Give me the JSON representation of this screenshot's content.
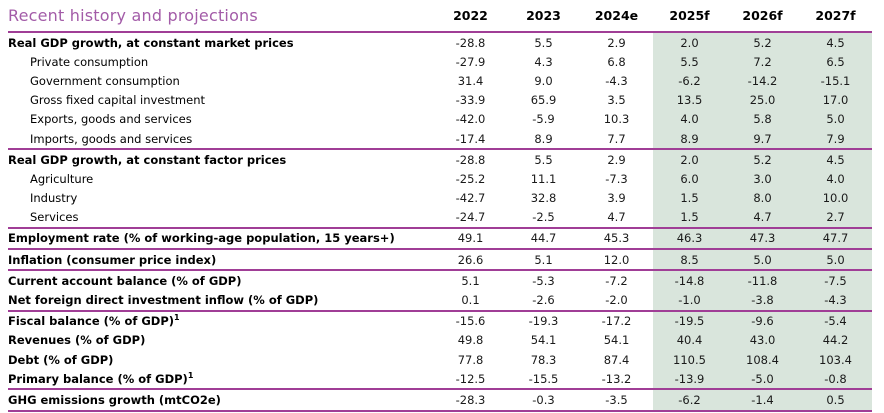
{
  "title": "Recent history and projections",
  "columns": [
    "2022",
    "2023",
    "2024e",
    "2025f",
    "2026f",
    "2027f"
  ],
  "forecast_columns": [
    "2025f",
    "2026f",
    "2027f"
  ],
  "colors": {
    "line_purple": "#A03E96",
    "title_purple": "#A35CA8",
    "forecast_bg_green": "#D9E5DC",
    "text": "#000000"
  },
  "rows": [
    {
      "label": "Real GDP growth, at constant market prices",
      "style": "bold",
      "values": [
        "-28.8",
        "5.5",
        "2.9",
        "2.0",
        "5.2",
        "4.5"
      ]
    },
    {
      "label": "Private consumption",
      "style": "sub",
      "values": [
        "-27.9",
        "4.3",
        "6.8",
        "5.5",
        "7.2",
        "6.5"
      ]
    },
    {
      "label": "Government consumption",
      "style": "sub",
      "values": [
        "31.4",
        "9.0",
        "-4.3",
        "-6.2",
        "-14.2",
        "-15.1"
      ]
    },
    {
      "label": "Gross fixed capital investment",
      "style": "sub",
      "values": [
        "-33.9",
        "65.9",
        "3.5",
        "13.5",
        "25.0",
        "17.0"
      ]
    },
    {
      "label": "Exports, goods and services",
      "style": "sub",
      "values": [
        "-42.0",
        "-5.9",
        "10.3",
        "4.0",
        "5.8",
        "5.0"
      ]
    },
    {
      "label": "Imports, goods and services",
      "style": "sub",
      "values": [
        "-17.4",
        "8.9",
        "7.7",
        "8.9",
        "9.7",
        "7.9"
      ],
      "divider_after": true
    },
    {
      "label": "Real GDP growth, at constant factor prices",
      "style": "bold",
      "values": [
        "-28.8",
        "5.5",
        "2.9",
        "2.0",
        "5.2",
        "4.5"
      ]
    },
    {
      "label": "Agriculture",
      "style": "sub",
      "values": [
        "-25.2",
        "11.1",
        "-7.3",
        "6.0",
        "3.0",
        "4.0"
      ]
    },
    {
      "label": "Industry",
      "style": "sub",
      "values": [
        "-42.7",
        "32.8",
        "3.9",
        "1.5",
        "8.0",
        "10.0"
      ]
    },
    {
      "label": "Services",
      "style": "sub",
      "values": [
        "-24.7",
        "-2.5",
        "4.7",
        "1.5",
        "4.7",
        "2.7"
      ],
      "divider_after": true
    },
    {
      "label": "Employment rate (% of working-age population, 15 years+)",
      "style": "bold",
      "values": [
        "49.1",
        "44.7",
        "45.3",
        "46.3",
        "47.3",
        "47.7"
      ],
      "divider_after": true
    },
    {
      "label": "Inflation (consumer price index)",
      "style": "bold",
      "values": [
        "26.6",
        "5.1",
        "12.0",
        "8.5",
        "5.0",
        "5.0"
      ],
      "divider_after": true
    },
    {
      "label": "Current account balance (% of GDP)",
      "style": "bold",
      "values": [
        "5.1",
        "-5.3",
        "-7.2",
        "-14.8",
        "-11.8",
        "-7.5"
      ]
    },
    {
      "label": "Net foreign direct investment inflow (% of GDP)",
      "style": "bold",
      "values": [
        "0.1",
        "-2.6",
        "-2.0",
        "-1.0",
        "-3.8",
        "-4.3"
      ],
      "divider_after": true
    },
    {
      "label": "Fiscal balance (% of GDP)",
      "sup": "1",
      "style": "bold",
      "values": [
        "-15.6",
        "-19.3",
        "-17.2",
        "-19.5",
        "-9.6",
        "-5.4"
      ]
    },
    {
      "label": "Revenues (% of GDP)",
      "style": "bold",
      "values": [
        "49.8",
        "54.1",
        "54.1",
        "40.4",
        "43.0",
        "44.2"
      ]
    },
    {
      "label": "Debt (% of GDP)",
      "style": "bold",
      "values": [
        "77.8",
        "78.3",
        "87.4",
        "110.5",
        "108.4",
        "103.4"
      ]
    },
    {
      "label": "Primary balance (% of GDP)",
      "sup": "1",
      "style": "bold",
      "values": [
        "-12.5",
        "-15.5",
        "-13.2",
        "-13.9",
        "-5.0",
        "-0.8"
      ],
      "divider_after": true
    },
    {
      "label": "GHG emissions growth (mtCO2e)",
      "style": "bold",
      "values": [
        "-28.3",
        "-0.3",
        "-3.5",
        "-6.2",
        "-1.4",
        "0.5"
      ],
      "divider_after": true
    }
  ]
}
